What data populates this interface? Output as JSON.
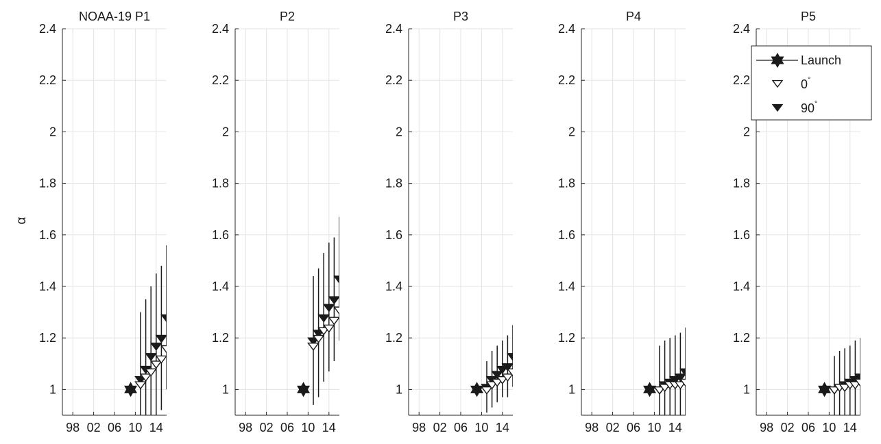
{
  "chart_data": {
    "type": "scatter",
    "ylabel": "α",
    "ylim": [
      0.9,
      2.4
    ],
    "xlim": [
      1996,
      2016
    ],
    "yticks": [
      1,
      1.2,
      1.4,
      1.6,
      1.8,
      2,
      2.2,
      2.4
    ],
    "ytick_labels": [
      "1",
      "1.2",
      "1.4",
      "1.6",
      "1.8",
      "2",
      "2.2",
      "2.4"
    ],
    "xticks": [
      1998,
      2002,
      2006,
      2010,
      2014
    ],
    "xtick_labels": [
      "98",
      "02",
      "06",
      "10",
      "14"
    ],
    "grid": true,
    "legend": {
      "panel": 4,
      "placement": "top-right",
      "entries": [
        {
          "label": "Launch",
          "marker": "hexagram"
        },
        {
          "label": "0",
          "superscript": "°",
          "marker": "triangle-down-open"
        },
        {
          "label": "90",
          "superscript": "°",
          "marker": "triangle-down-filled"
        }
      ]
    },
    "panels": [
      {
        "title": "NOAA-19 P1",
        "launch": {
          "x": 2009.1,
          "y": 1.0
        },
        "years": [
          2011,
          2012,
          2013,
          2014,
          2015,
          2016
        ],
        "open_0deg": [
          1.02,
          1.05,
          1.07,
          1.1,
          1.12,
          1.16
        ],
        "filled_90deg": [
          1.04,
          1.08,
          1.13,
          1.17,
          1.2,
          1.28
        ],
        "errors": [
          0.26,
          0.27,
          0.27,
          0.28,
          0.28,
          0.28
        ]
      },
      {
        "title": "P2",
        "launch": {
          "x": 2009.1,
          "y": 1.0
        },
        "years": [
          2011,
          2012,
          2013,
          2014,
          2015,
          2016
        ],
        "open_0deg": [
          1.17,
          1.2,
          1.23,
          1.24,
          1.27,
          1.31
        ],
        "filled_90deg": [
          1.19,
          1.22,
          1.28,
          1.32,
          1.35,
          1.43
        ],
        "errors": [
          0.25,
          0.25,
          0.25,
          0.25,
          0.24,
          0.24
        ]
      },
      {
        "title": "P3",
        "launch": {
          "x": 2009.1,
          "y": 1.0
        },
        "years": [
          2011,
          2012,
          2013,
          2014,
          2015,
          2016
        ],
        "open_0deg": [
          1.0,
          1.02,
          1.03,
          1.04,
          1.05,
          1.07
        ],
        "filled_90deg": [
          1.01,
          1.04,
          1.06,
          1.08,
          1.09,
          1.13
        ],
        "errors": [
          0.1,
          0.11,
          0.11,
          0.11,
          0.12,
          0.12
        ]
      },
      {
        "title": "P4",
        "launch": {
          "x": 2009.1,
          "y": 1.0
        },
        "years": [
          2011,
          2012,
          2013,
          2014,
          2015,
          2016
        ],
        "open_0deg": [
          1.0,
          1.01,
          1.02,
          1.02,
          1.02,
          1.03
        ],
        "filled_90deg": [
          1.0,
          1.02,
          1.03,
          1.04,
          1.05,
          1.07
        ],
        "errors": [
          0.17,
          0.17,
          0.17,
          0.17,
          0.17,
          0.17
        ]
      },
      {
        "title": "P5",
        "launch": {
          "x": 2009.1,
          "y": 1.0
        },
        "years": [
          2011,
          2012,
          2013,
          2014,
          2015,
          2016
        ],
        "open_0deg": [
          1.0,
          1.01,
          1.01,
          1.02,
          1.02,
          1.03
        ],
        "filled_90deg": [
          1.0,
          1.01,
          1.02,
          1.03,
          1.04,
          1.05
        ],
        "errors": [
          0.13,
          0.14,
          0.14,
          0.14,
          0.15,
          0.15
        ]
      }
    ]
  }
}
